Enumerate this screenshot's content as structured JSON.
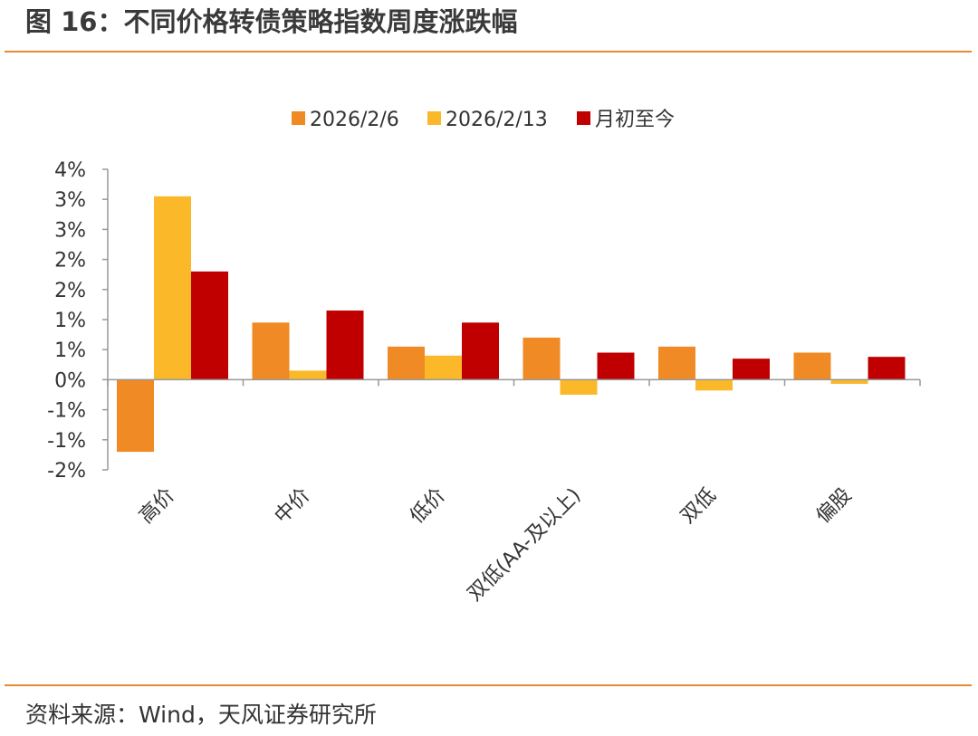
{
  "title": "图 16：不同价格转债策略指数周度涨跌幅",
  "source": "资料来源：Wind，天风证券研究所",
  "colors": {
    "rule": "#E8892E",
    "axis": "#999999",
    "text": "#333333"
  },
  "chart_data": {
    "type": "bar",
    "categories": [
      "高价",
      "中价",
      "低价",
      "双低(AA-及以上)",
      "双低",
      "偏股"
    ],
    "series": [
      {
        "name": "2026/2/6",
        "color": "#F08A24",
        "values": [
          -1.2,
          0.95,
          0.55,
          0.7,
          0.55,
          0.45
        ]
      },
      {
        "name": "2026/2/13",
        "color": "#FBB829",
        "values": [
          3.05,
          0.15,
          0.4,
          -0.25,
          -0.18,
          -0.07
        ]
      },
      {
        "name": "月初至今",
        "color": "#C00000",
        "values": [
          1.8,
          1.15,
          0.95,
          0.45,
          0.35,
          0.38
        ]
      }
    ],
    "y_ticks": [
      {
        "value": 3.5,
        "label": "4%"
      },
      {
        "value": 3.0,
        "label": "3%"
      },
      {
        "value": 2.5,
        "label": "3%"
      },
      {
        "value": 2.0,
        "label": "2%"
      },
      {
        "value": 1.5,
        "label": "2%"
      },
      {
        "value": 1.0,
        "label": "1%"
      },
      {
        "value": 0.5,
        "label": "1%"
      },
      {
        "value": 0.0,
        "label": "0%"
      },
      {
        "value": -0.5,
        "label": "-1%"
      },
      {
        "value": -1.0,
        "label": "-1%"
      },
      {
        "value": -1.5,
        "label": "-2%"
      }
    ],
    "ylim": [
      -1.5,
      3.5
    ],
    "legend_position": "top-center",
    "grid": false
  }
}
